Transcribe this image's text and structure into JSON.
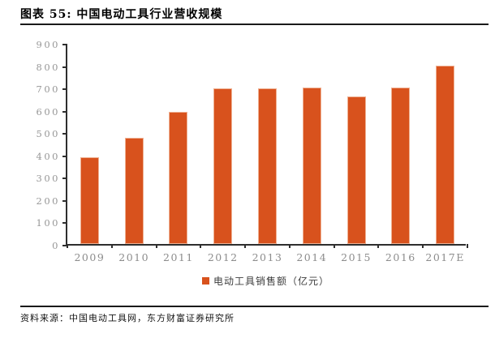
{
  "header": {
    "title": "图表 55: 中国电动工具行业营收规模"
  },
  "chart_data": {
    "type": "bar",
    "title": "图表 55: 中国电动工具行业营收规模",
    "categories": [
      "2009",
      "2010",
      "2011",
      "2012",
      "2013",
      "2014",
      "2015",
      "2016",
      "2017E"
    ],
    "series": [
      {
        "name": "电动工具销售额（亿元）",
        "values": [
          388,
          477,
          593,
          698,
          698,
          701,
          660,
          700,
          798
        ]
      }
    ],
    "ylabel": "",
    "xlabel": "",
    "ylim": [
      0,
      900
    ],
    "yticks": [
      0,
      100,
      200,
      300,
      400,
      500,
      600,
      700,
      800,
      900
    ],
    "grid": false,
    "legend_position": "bottom"
  },
  "colors": {
    "bar": "#d8521d",
    "bar_border": "#efb193",
    "axis": "#2e2e2e",
    "y_tick_label": "#979797",
    "x_tick_label": "#8c8c8c",
    "title": "#000000"
  },
  "footer": {
    "source": "资料来源：中国电动工具网，东方财富证券研究所"
  }
}
